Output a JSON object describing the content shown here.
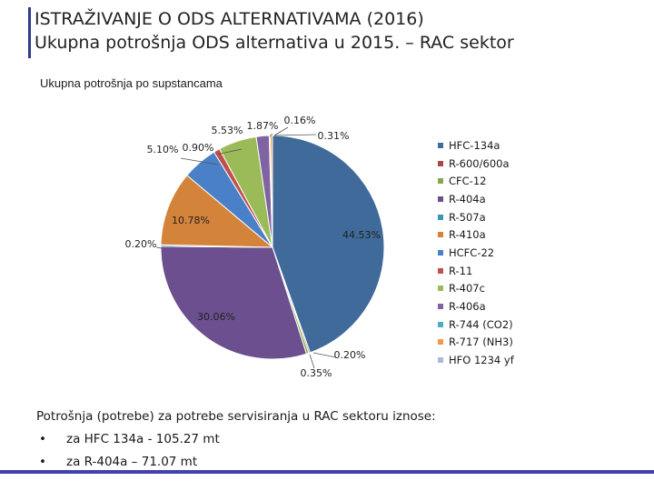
{
  "header": {
    "line1": "ISTRAŽIVANJE O ODS ALTERNATIVAMA (2016)",
    "line2": "Ukupna potrošnja ODS alternativa u 2015. – RAC sektor"
  },
  "chart_data": {
    "type": "pie",
    "title": "Ukupna potrošnja po supstancama",
    "legend_position": "right",
    "categories": [
      "HFC-134a",
      "R-600/600a",
      "CFC-12",
      "R-404a",
      "R-507a",
      "R-410a",
      "HCFC-22",
      "R-11",
      "R-407c",
      "R-406a",
      "R-744 (CO2)",
      "R-717 (NH3)",
      "HFO 1234 yf"
    ],
    "values": [
      44.53,
      0.2,
      0.35,
      30.06,
      0.2,
      10.78,
      5.1,
      0.9,
      5.53,
      1.87,
      0.16,
      0.31,
      0.0
    ],
    "labels": [
      "44.53%",
      "0.20%",
      "0.35%",
      "30.06%",
      "0.20%",
      "10.78%",
      "5.10%",
      "0.90%",
      "5.53%",
      "1.87%",
      "0.16%",
      "0.31%",
      ""
    ],
    "colors": [
      "#3f6a9a",
      "#a84a47",
      "#86a84a",
      "#6b4f8e",
      "#3d98ad",
      "#d4843a",
      "#4a80c8",
      "#c0504d",
      "#9bbb59",
      "#8064a2",
      "#4bacc6",
      "#f79646",
      "#aabad6"
    ]
  },
  "notes": {
    "intro": "Potrošnja (potrebe) za potrebe servisiranja u RAC sektoru iznose:",
    "bullets": [
      {
        "marker": "•",
        "text": "za HFC 134a - 105.27 mt"
      },
      {
        "marker": "•",
        "text": "za R-404a – 71.07 mt"
      }
    ]
  }
}
